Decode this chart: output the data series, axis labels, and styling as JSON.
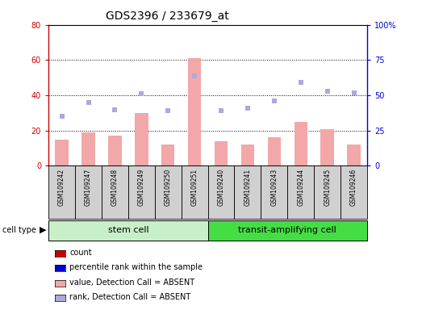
{
  "title": "GDS2396 / 233679_at",
  "samples": [
    "GSM109242",
    "GSM109247",
    "GSM109248",
    "GSM109249",
    "GSM109250",
    "GSM109251",
    "GSM109240",
    "GSM109241",
    "GSM109243",
    "GSM109244",
    "GSM109245",
    "GSM109246"
  ],
  "bar_values": [
    15,
    19,
    17,
    30,
    12,
    61,
    14,
    12,
    16,
    25,
    21,
    12
  ],
  "dot_values": [
    35,
    45,
    40,
    51,
    39,
    64,
    39,
    41,
    46,
    59,
    53,
    52
  ],
  "ylim_left": [
    0,
    80
  ],
  "ylim_right": [
    0,
    100
  ],
  "yticks_left": [
    0,
    20,
    40,
    60,
    80
  ],
  "ytick_labels_left": [
    "0",
    "20",
    "40",
    "60",
    "80"
  ],
  "yticks_right": [
    0,
    25,
    50,
    75,
    100
  ],
  "ytick_labels_right": [
    "0",
    "25",
    "50",
    "75",
    "100%"
  ],
  "bar_color": "#f2a8a8",
  "dot_color": "#aaaadd",
  "left_axis_color": "#cc0000",
  "right_axis_color": "#0000cc",
  "grid_color": "#000000",
  "cell_type_groups": [
    {
      "label": "stem cell",
      "start": 0,
      "end": 6,
      "color": "#c8f0c8"
    },
    {
      "label": "transit-amplifying cell",
      "start": 6,
      "end": 12,
      "color": "#44dd44"
    }
  ],
  "legend_items": [
    {
      "label": "count",
      "color": "#cc0000"
    },
    {
      "label": "percentile rank within the sample",
      "color": "#0000cc"
    },
    {
      "label": "value, Detection Call = ABSENT",
      "color": "#f2a8a8"
    },
    {
      "label": "rank, Detection Call = ABSENT",
      "color": "#aaaadd"
    }
  ],
  "sample_box_color": "#d0d0d0",
  "sample_box_edge_color": "#000000",
  "title_fontsize": 10,
  "tick_fontsize": 7,
  "legend_fontsize": 7,
  "sample_fontsize": 5.5,
  "celltype_fontsize": 8
}
